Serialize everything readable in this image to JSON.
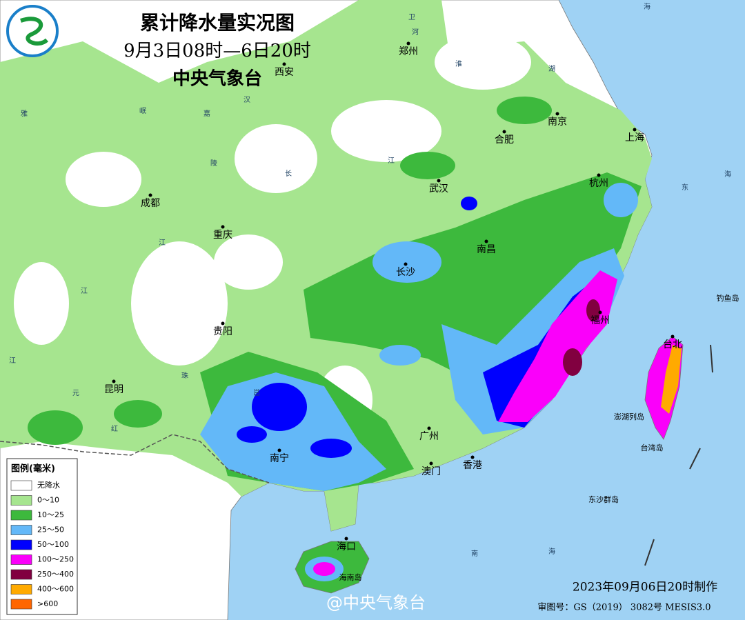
{
  "header": {
    "title": "累计降水量实况图",
    "period": "9月3日08时—6日20时",
    "agency": "中央气象台"
  },
  "cities": [
    "西安",
    "郑州",
    "南京",
    "合肥",
    "上海",
    "杭州",
    "武汉",
    "成都",
    "重庆",
    "长沙",
    "南昌",
    "贵阳",
    "福州",
    "台北",
    "昆明",
    "南宁",
    "广州",
    "香港",
    "澳门",
    "海口"
  ],
  "map_labels": [
    "澎湖列岛",
    "台湾岛",
    "钓鱼岛",
    "东沙群岛",
    "海南岛",
    "卫",
    "河",
    "淮",
    "湖",
    "汉",
    "嘉",
    "陵",
    "江",
    "长",
    "雅",
    "岷",
    "江",
    "江",
    "江",
    "珠",
    "邕",
    "元",
    "红",
    "东",
    "海",
    "海",
    "海",
    "南"
  ],
  "legend": {
    "title": "图例(毫米)",
    "items": [
      "无降水",
      "0～10",
      "10～25",
      "25～50",
      "50～100",
      "100～250",
      "250～400",
      "400～600",
      ">600"
    ]
  },
  "footer": {
    "made": "2023年09月06日20时制作",
    "watermark": "@中央气象台",
    "approval": "审图号：GS（2019） 3082号 MESIS3.0"
  }
}
